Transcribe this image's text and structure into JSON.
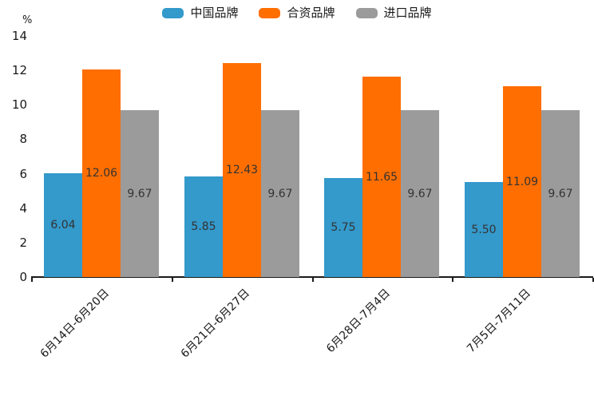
{
  "chart_data": {
    "type": "bar",
    "title": "",
    "unit_label": "%",
    "categories": [
      "6月14日-6月20日",
      "6月21日-6月27日",
      "6月28日-7月4日",
      "7月5日-7月11日"
    ],
    "series": [
      {
        "name": "中国品牌",
        "color": "#3499cb",
        "values": [
          6.04,
          5.85,
          5.75,
          5.5
        ],
        "labels": [
          "6.04",
          "5.85",
          "5.75",
          "5.50"
        ]
      },
      {
        "name": "合资品牌",
        "color": "#ff6e00",
        "values": [
          12.06,
          12.43,
          11.65,
          11.09
        ],
        "labels": [
          "12.06",
          "12.43",
          "11.65",
          "11.09"
        ]
      },
      {
        "name": "进口品牌",
        "color": "#9b9b9b",
        "values": [
          9.67,
          9.67,
          9.67,
          9.67
        ],
        "labels": [
          "9.67",
          "9.67",
          "9.67",
          "9.67"
        ]
      }
    ],
    "y_ticks": [
      "0",
      "2",
      "4",
      "6",
      "8",
      "10",
      "12",
      "14"
    ],
    "ylim": [
      0,
      14
    ],
    "grid": false,
    "legend_position": "top",
    "axis_color": "#1a1a1a",
    "value_label_color": "#333333"
  }
}
